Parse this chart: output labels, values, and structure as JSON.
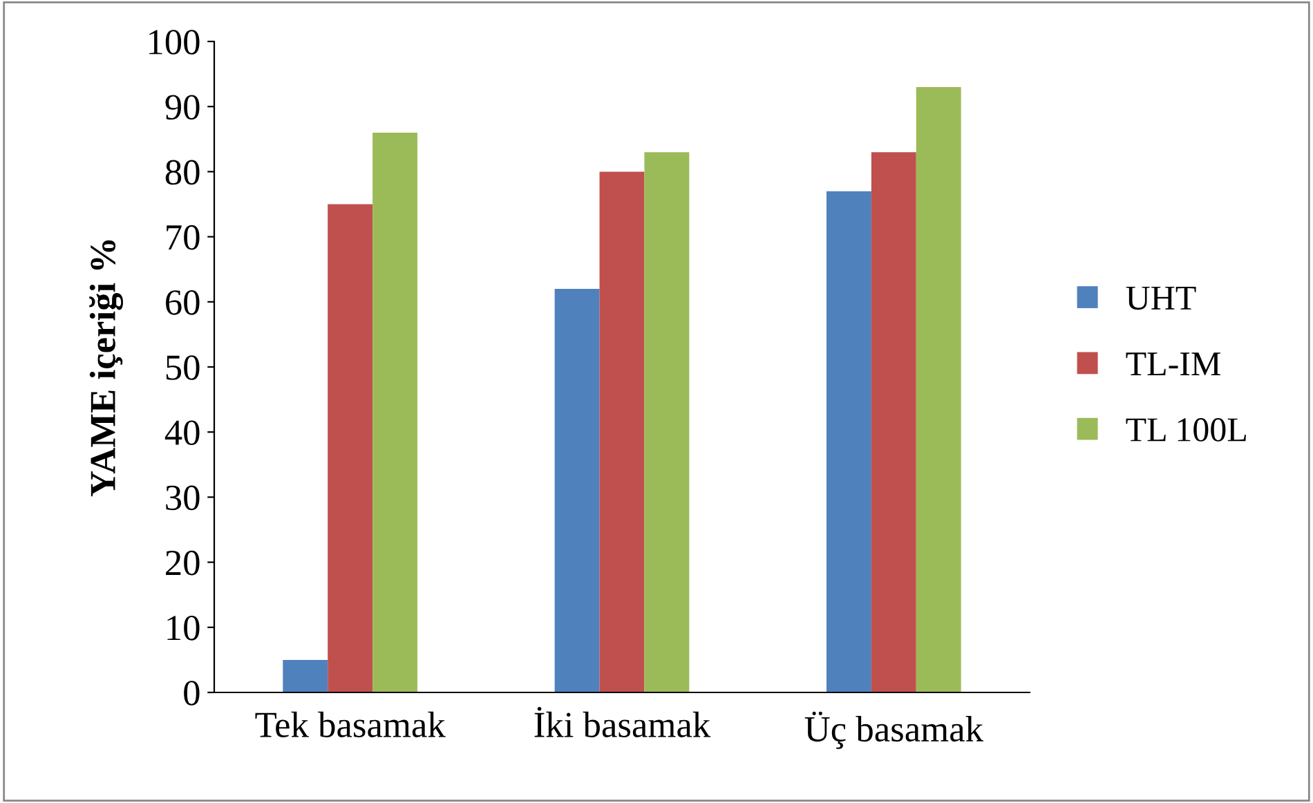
{
  "chart_data": {
    "type": "bar",
    "ylabel": "YAME içeriği %",
    "categories": [
      "Tek basamak",
      "İki basamak",
      "Üç basamak"
    ],
    "series": [
      {
        "name": "UHT",
        "color": "#4f81bd",
        "values": [
          5,
          62,
          77
        ]
      },
      {
        "name": "TL-IM",
        "color": "#c0504d",
        "values": [
          75,
          80,
          83
        ]
      },
      {
        "name": "TL 100L",
        "color": "#9bbb59",
        "values": [
          86,
          83,
          93
        ]
      }
    ],
    "ylim": [
      0,
      100
    ],
    "yticks": [
      0,
      10,
      20,
      30,
      40,
      50,
      60,
      70,
      80,
      90,
      100
    ],
    "grid": false,
    "legend": "right"
  }
}
